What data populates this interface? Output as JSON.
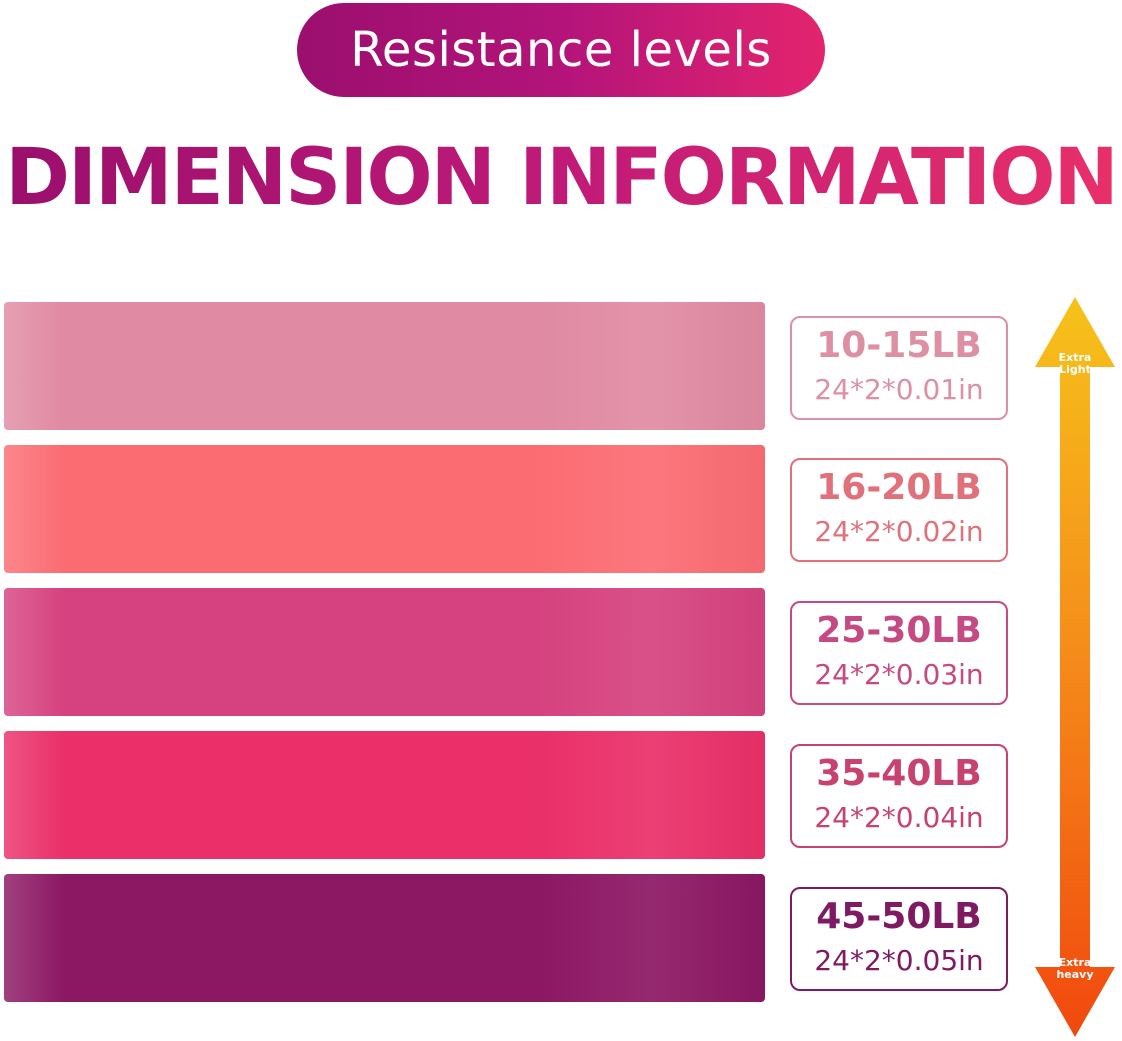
{
  "header": {
    "subtitle": "Resistance levels",
    "title": "DIMENSION INFORMATION"
  },
  "bands": [
    {
      "resistance": "10-15LB",
      "dimension": "24*2*0.01in",
      "band_color": "#e08aa3",
      "text_color": "#dd8fa3"
    },
    {
      "resistance": "16-20LB",
      "dimension": "24*2*0.02in",
      "band_color": "#fb6c72",
      "text_color": "#e0707a"
    },
    {
      "resistance": "25-30LB",
      "dimension": "24*2*0.03in",
      "band_color": "#d6427f",
      "text_color": "#c54a83"
    },
    {
      "resistance": "35-40LB",
      "dimension": "24*2*0.04in",
      "band_color": "#ea2f69",
      "text_color": "#c84270"
    },
    {
      "resistance": "45-50LB",
      "dimension": "24*2*0.05in",
      "band_color": "#8c1763",
      "text_color": "#7e1a62"
    }
  ],
  "scale_arrow": {
    "top_label": "Extra Light",
    "bottom_label": "Extra heavy",
    "top_color": "#f6c21a",
    "bottom_color": "#f1480e"
  }
}
